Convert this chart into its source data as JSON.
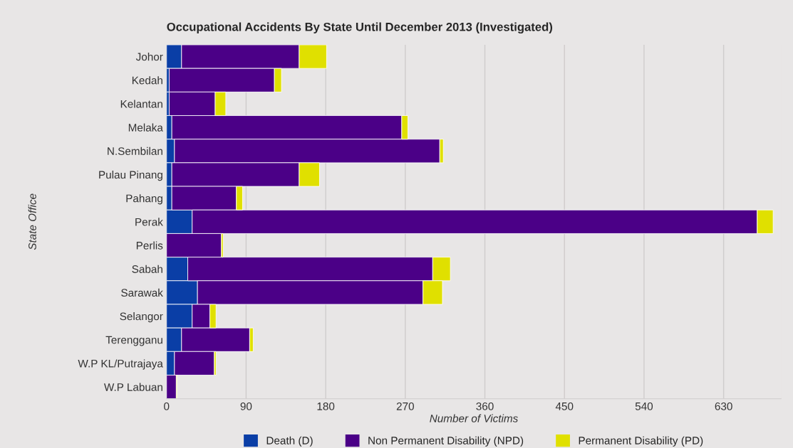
{
  "chart_data": {
    "type": "bar",
    "orientation": "horizontal",
    "stacked": true,
    "title": "Occupational Accidents By State Until December 2013 (Investigated)",
    "xlabel": "Number of Victims",
    "ylabel": "State Office",
    "categories": [
      "Johor",
      "Kedah",
      "Kelantan",
      "Melaka",
      "N.Sembilan",
      "Pulau Pinang",
      "Pahang",
      "Perak",
      "Perlis",
      "Sabah",
      "Sarawak",
      "Selangor",
      "Terengganu",
      "W.P KL/Putrajaya",
      "W.P Labuan"
    ],
    "series": [
      {
        "name": "Death (D)",
        "color": "#0a3ea6",
        "values": [
          17,
          3,
          3,
          6,
          9,
          6,
          6,
          29,
          null,
          24,
          35,
          29,
          17,
          9,
          0
        ]
      },
      {
        "name": "Non Permanent Disability (NPD)",
        "color": "#4b0087",
        "values": [
          133,
          119,
          52,
          260,
          300,
          144,
          73,
          639,
          62,
          277,
          255,
          20,
          77,
          45,
          11
        ]
      },
      {
        "name": "Permanent Disability (PD)",
        "color": "#e0e000",
        "values": [
          31,
          8,
          12,
          7,
          4,
          23,
          7,
          18,
          2,
          20,
          22,
          7,
          4,
          2,
          1
        ]
      }
    ],
    "xlim": [
      0,
      695
    ],
    "xticks": [
      0,
      90,
      180,
      270,
      360,
      450,
      540,
      630
    ],
    "grid": "x",
    "legend": "bottom"
  }
}
